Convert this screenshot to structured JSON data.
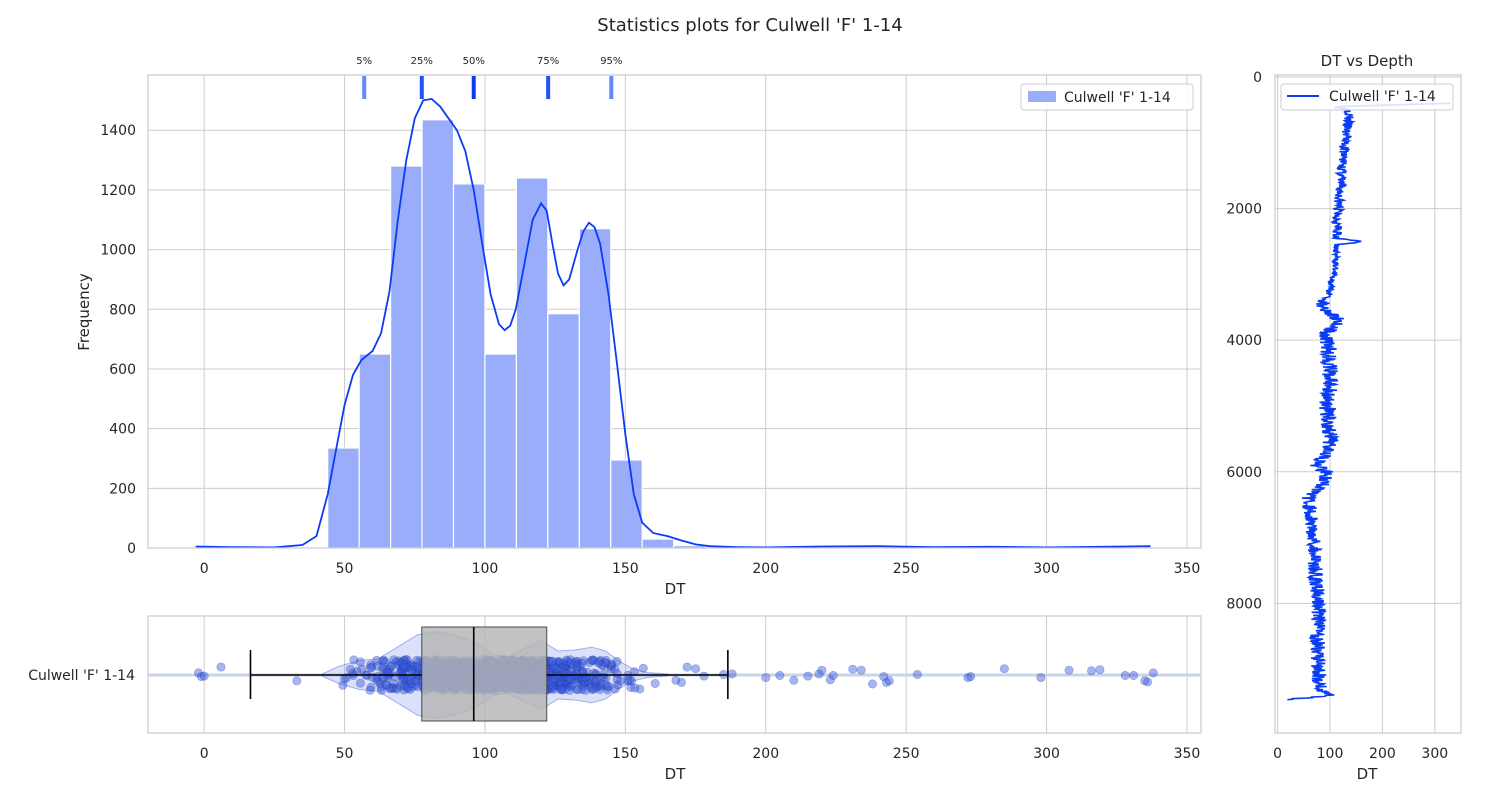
{
  "figure": {
    "title": "Statistics plots for Culwell 'F' 1-14"
  },
  "colors": {
    "kde": "#0a3cf5",
    "hist_fill": "#9aadfa",
    "depth_line": "#0a3cf5",
    "box_fill": "#b4b4b4",
    "whisker": "#000000",
    "grid": "#cccccc",
    "violin": "#5a78e6",
    "strip": "#3a5ae0"
  },
  "chart_data": [
    {
      "id": "histogram",
      "type": "bar",
      "xlabel": "DT",
      "ylabel": "Frequency",
      "xlim": [
        -20,
        355
      ],
      "ylim": [
        0,
        1585
      ],
      "xticks": [
        0,
        50,
        100,
        150,
        200,
        250,
        300,
        350
      ],
      "yticks": [
        0,
        200,
        400,
        600,
        800,
        1000,
        1200,
        1400
      ],
      "grid": true,
      "legend": {
        "position": "top-right",
        "label": "Culwell 'F' 1-14"
      },
      "bins": [
        {
          "x0": 44,
          "x1": 55.2,
          "value": 335
        },
        {
          "x0": 55.2,
          "x1": 66.4,
          "value": 650
        },
        {
          "x0": 66.4,
          "x1": 77.6,
          "value": 1280
        },
        {
          "x0": 77.6,
          "x1": 88.8,
          "value": 1435
        },
        {
          "x0": 88.8,
          "x1": 100.0,
          "value": 1220
        },
        {
          "x0": 100.0,
          "x1": 111.2,
          "value": 650
        },
        {
          "x0": 111.2,
          "x1": 122.4,
          "value": 1240
        },
        {
          "x0": 122.4,
          "x1": 133.6,
          "value": 785
        },
        {
          "x0": 133.6,
          "x1": 144.8,
          "value": 1070
        },
        {
          "x0": 144.8,
          "x1": 156.0,
          "value": 295
        },
        {
          "x0": 156.0,
          "x1": 167.2,
          "value": 30
        },
        {
          "x0": 167.2,
          "x1": 178.4,
          "value": 8
        },
        {
          "x0": 178.4,
          "x1": 189.6,
          "value": 3
        },
        {
          "x0": 189.6,
          "x1": 200.8,
          "value": 2
        }
      ],
      "kde": [
        [
          -3,
          5
        ],
        [
          10,
          3
        ],
        [
          25,
          2
        ],
        [
          35,
          10
        ],
        [
          40,
          40
        ],
        [
          44,
          180
        ],
        [
          47,
          330
        ],
        [
          50,
          480
        ],
        [
          53,
          580
        ],
        [
          56,
          630
        ],
        [
          60,
          660
        ],
        [
          63,
          720
        ],
        [
          66,
          860
        ],
        [
          69,
          1100
        ],
        [
          72,
          1300
        ],
        [
          75,
          1440
        ],
        [
          78,
          1500
        ],
        [
          81,
          1505
        ],
        [
          84,
          1480
        ],
        [
          87,
          1440
        ],
        [
          90,
          1400
        ],
        [
          93,
          1330
        ],
        [
          96,
          1200
        ],
        [
          99,
          1020
        ],
        [
          102,
          850
        ],
        [
          105,
          750
        ],
        [
          107,
          730
        ],
        [
          109,
          745
        ],
        [
          111,
          800
        ],
        [
          114,
          950
        ],
        [
          117,
          1100
        ],
        [
          120,
          1155
        ],
        [
          122,
          1130
        ],
        [
          124,
          1020
        ],
        [
          126,
          920
        ],
        [
          128,
          880
        ],
        [
          130,
          900
        ],
        [
          133,
          1000
        ],
        [
          135,
          1060
        ],
        [
          137,
          1090
        ],
        [
          139,
          1075
        ],
        [
          141,
          1020
        ],
        [
          144,
          850
        ],
        [
          147,
          620
        ],
        [
          150,
          380
        ],
        [
          153,
          180
        ],
        [
          156,
          85
        ],
        [
          160,
          50
        ],
        [
          165,
          40
        ],
        [
          170,
          25
        ],
        [
          175,
          12
        ],
        [
          180,
          6
        ],
        [
          190,
          3
        ],
        [
          200,
          2
        ],
        [
          220,
          5
        ],
        [
          240,
          6
        ],
        [
          260,
          3
        ],
        [
          280,
          4
        ],
        [
          300,
          2
        ],
        [
          320,
          4
        ],
        [
          337,
          6
        ]
      ]
    },
    {
      "id": "percentiles",
      "type": "scatter",
      "markers": [
        {
          "label": "5%",
          "x": 57,
          "strength": 0.45
        },
        {
          "label": "25%",
          "x": 77.5,
          "strength": 0.85
        },
        {
          "label": "50%",
          "x": 96,
          "strength": 1.0
        },
        {
          "label": "75%",
          "x": 122.5,
          "strength": 0.85
        },
        {
          "label": "95%",
          "x": 145,
          "strength": 0.45
        }
      ]
    },
    {
      "id": "boxplot",
      "type": "scatter",
      "xlabel": "DT",
      "xlim": [
        -20,
        355
      ],
      "xticks": [
        0,
        50,
        100,
        150,
        200,
        250,
        300,
        350
      ],
      "category": "Culwell 'F' 1-14",
      "box": {
        "whisker_low": 16.5,
        "q1": 77.5,
        "median": 96,
        "q3": 122,
        "whisker_high": 186.5
      },
      "violin_profile": [
        [
          42,
          0.02
        ],
        [
          48,
          0.18
        ],
        [
          55,
          0.3
        ],
        [
          62,
          0.34
        ],
        [
          68,
          0.55
        ],
        [
          76,
          0.84
        ],
        [
          82,
          0.9
        ],
        [
          88,
          0.85
        ],
        [
          96,
          0.7
        ],
        [
          103,
          0.42
        ],
        [
          108,
          0.38
        ],
        [
          114,
          0.55
        ],
        [
          120,
          0.72
        ],
        [
          126,
          0.5
        ],
        [
          132,
          0.52
        ],
        [
          138,
          0.58
        ],
        [
          143,
          0.5
        ],
        [
          148,
          0.28
        ],
        [
          153,
          0.12
        ],
        [
          158,
          0.05
        ],
        [
          165,
          0.02
        ]
      ],
      "outliers": [
        [
          -2,
          -0.2
        ],
        [
          -1,
          0.15
        ],
        [
          0,
          0.1
        ],
        [
          6,
          -0.75
        ],
        [
          33,
          0.55
        ],
        [
          170,
          0.7
        ],
        [
          168,
          0.5
        ],
        [
          172,
          -0.75
        ],
        [
          175,
          -0.6
        ],
        [
          178,
          0.1
        ],
        [
          185,
          -0.05
        ],
        [
          188,
          -0.1
        ],
        [
          200,
          0.25
        ],
        [
          205,
          0.05
        ],
        [
          210,
          0.5
        ],
        [
          215,
          0.1
        ],
        [
          219,
          -0.1
        ],
        [
          220,
          -0.45
        ],
        [
          223,
          0.45
        ],
        [
          224,
          0.05
        ],
        [
          231,
          -0.55
        ],
        [
          234,
          -0.45
        ],
        [
          238,
          0.85
        ],
        [
          242,
          0.15
        ],
        [
          243,
          0.7
        ],
        [
          244,
          0.55
        ],
        [
          254,
          -0.05
        ],
        [
          272,
          0.25
        ],
        [
          273,
          0.15
        ],
        [
          285,
          -0.6
        ],
        [
          298,
          0.25
        ],
        [
          308,
          -0.45
        ],
        [
          316,
          -0.4
        ],
        [
          319,
          -0.5
        ],
        [
          328,
          0.05
        ],
        [
          331,
          0.05
        ],
        [
          335,
          0.55
        ],
        [
          336,
          0.65
        ],
        [
          338,
          -0.2
        ]
      ],
      "strip_range": [
        42,
        166
      ],
      "strip_count": 1100
    },
    {
      "id": "depth",
      "type": "line",
      "title": "DT vs Depth",
      "xlabel": "DT",
      "xlim": [
        -5,
        350
      ],
      "ylim": [
        9970,
        -30
      ],
      "xticks": [
        0,
        100,
        200,
        300
      ],
      "yticks": [
        0,
        2000,
        4000,
        6000,
        8000
      ],
      "grid": true,
      "legend": {
        "position": "top-right",
        "label": "Culwell 'F' 1-14"
      },
      "anchors": [
        [
          400,
          330
        ],
        [
          450,
          110
        ],
        [
          500,
          138
        ],
        [
          800,
          132
        ],
        [
          1200,
          126
        ],
        [
          1600,
          120
        ],
        [
          2000,
          116
        ],
        [
          2450,
          112
        ],
        [
          2500,
          165
        ],
        [
          2550,
          112
        ],
        [
          2900,
          110
        ],
        [
          3300,
          98
        ],
        [
          3450,
          85
        ],
        [
          3600,
          100
        ],
        [
          3700,
          120
        ],
        [
          3900,
          92
        ],
        [
          4200,
          98
        ],
        [
          4600,
          100
        ],
        [
          5000,
          95
        ],
        [
          5400,
          98
        ],
        [
          5700,
          102
        ],
        [
          5900,
          72
        ],
        [
          6000,
          96
        ],
        [
          6200,
          85
        ],
        [
          6400,
          60
        ],
        [
          6700,
          62
        ],
        [
          7000,
          70
        ],
        [
          7500,
          72
        ],
        [
          8000,
          78
        ],
        [
          8500,
          76
        ],
        [
          9000,
          78
        ],
        [
          9300,
          80
        ],
        [
          9400,
          100
        ],
        [
          9470,
          10
        ]
      ],
      "noise": [
        [
          400,
          2400,
          10
        ],
        [
          2400,
          3400,
          6
        ],
        [
          3400,
          4000,
          14
        ],
        [
          4000,
          6000,
          16
        ],
        [
          6000,
          9450,
          14
        ]
      ]
    }
  ]
}
